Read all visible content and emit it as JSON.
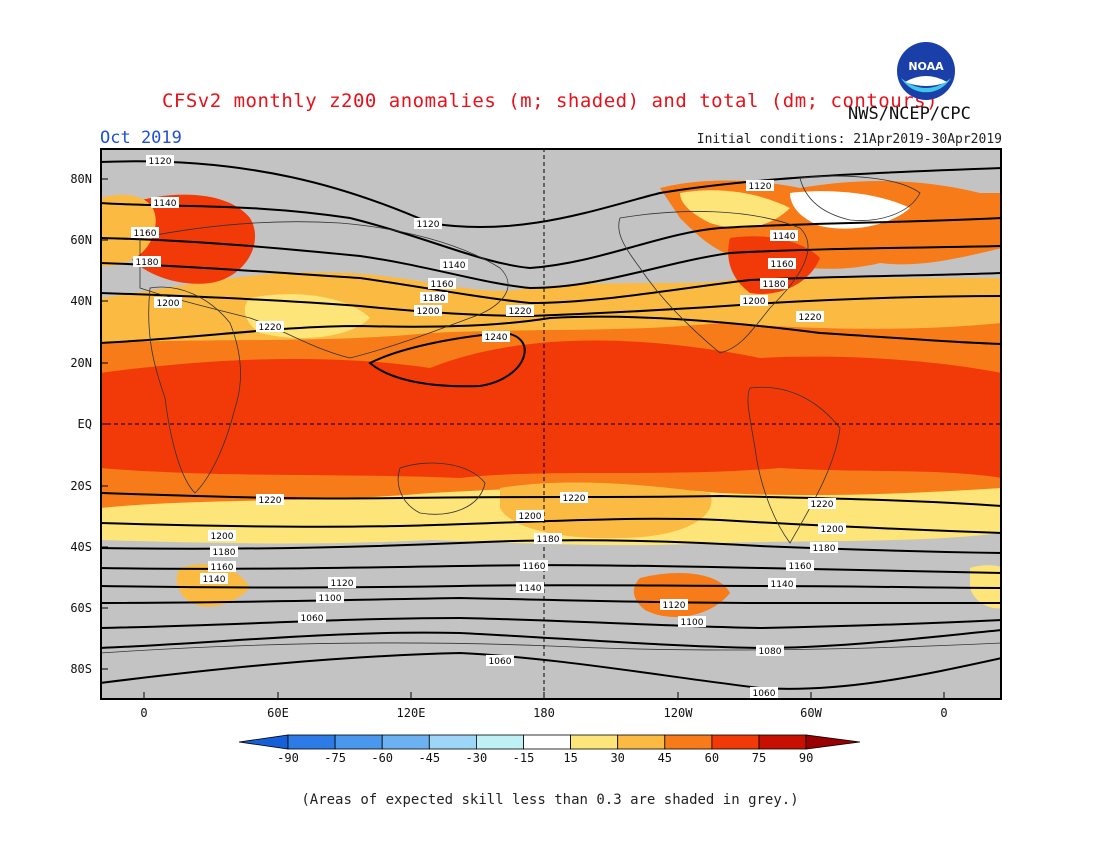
{
  "header": {
    "title": "CFSv2 monthly z200 anomalies (m; shaded) and total (dm; contours)",
    "agency": "NWS/NCEP/CPC",
    "month": "Oct 2019",
    "initial_conditions": "Initial conditions: 21Apr2019-30Apr2019",
    "logo_text": "NOAA"
  },
  "axes": {
    "lat_labels": [
      "80N",
      "60N",
      "40N",
      "20N",
      "EQ",
      "20S",
      "40S",
      "60S",
      "80S"
    ],
    "lon_labels": [
      "0",
      "60E",
      "120E",
      "180",
      "120W",
      "60W",
      "0"
    ]
  },
  "contours": {
    "labels": [
      "1120",
      "1140",
      "1160",
      "1180",
      "1200",
      "1220",
      "1240",
      "1060",
      "1080",
      "1100"
    ]
  },
  "colorbar": {
    "levels": [
      "-90",
      "-75",
      "-60",
      "-45",
      "-30",
      "-15",
      "15",
      "30",
      "45",
      "60",
      "75",
      "90"
    ],
    "colors": [
      "#1560d8",
      "#2c7be6",
      "#4a97ee",
      "#6cb2f3",
      "#9ed6f8",
      "#bff0f4",
      "#ffffff",
      "#fde57a",
      "#fbbb43",
      "#f77b18",
      "#f13a08",
      "#c81000",
      "#9a0000"
    ]
  },
  "footnote": "(Areas of expected skill less than 0.3 are shaded in grey.)"
}
